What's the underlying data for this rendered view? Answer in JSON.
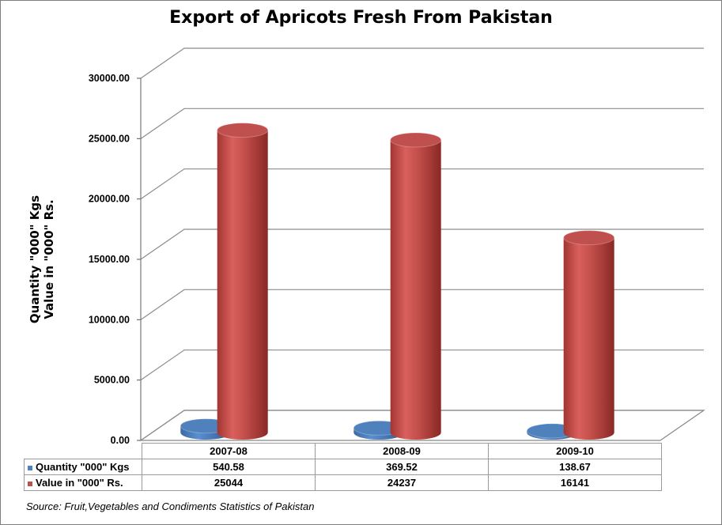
{
  "chart_data": {
    "type": "bar",
    "title": "Export of Apricots Fresh From Pakistan",
    "ylabel_line1": "Quantity \"000\" Kgs",
    "ylabel_line2": "Value in \"000\" Rs.",
    "categories": [
      "2007-08",
      "2008-09",
      "2009-10"
    ],
    "series": [
      {
        "name": "Quantity \"000\" Kgs",
        "values": [
          540.58,
          369.52,
          138.67
        ],
        "display": [
          "540.58",
          "369.52",
          "138.67"
        ],
        "color": "#4f81bd"
      },
      {
        "name": "Value in \"000\" Rs.",
        "values": [
          25044,
          24237,
          16141
        ],
        "display": [
          "25044",
          "24237",
          "16141"
        ],
        "color": "#c0504d"
      }
    ],
    "ylim": [
      0,
      30000
    ],
    "yticks": [
      "0.00",
      "5000.00",
      "10000.00",
      "15000.00",
      "20000.00",
      "25000.00",
      "30000.00"
    ],
    "grid": true,
    "bar_shape": "3d-cylinder",
    "legend": "data-table"
  },
  "source": "Source: Fruit,Vegetables and Condiments Statistics of Pakistan"
}
